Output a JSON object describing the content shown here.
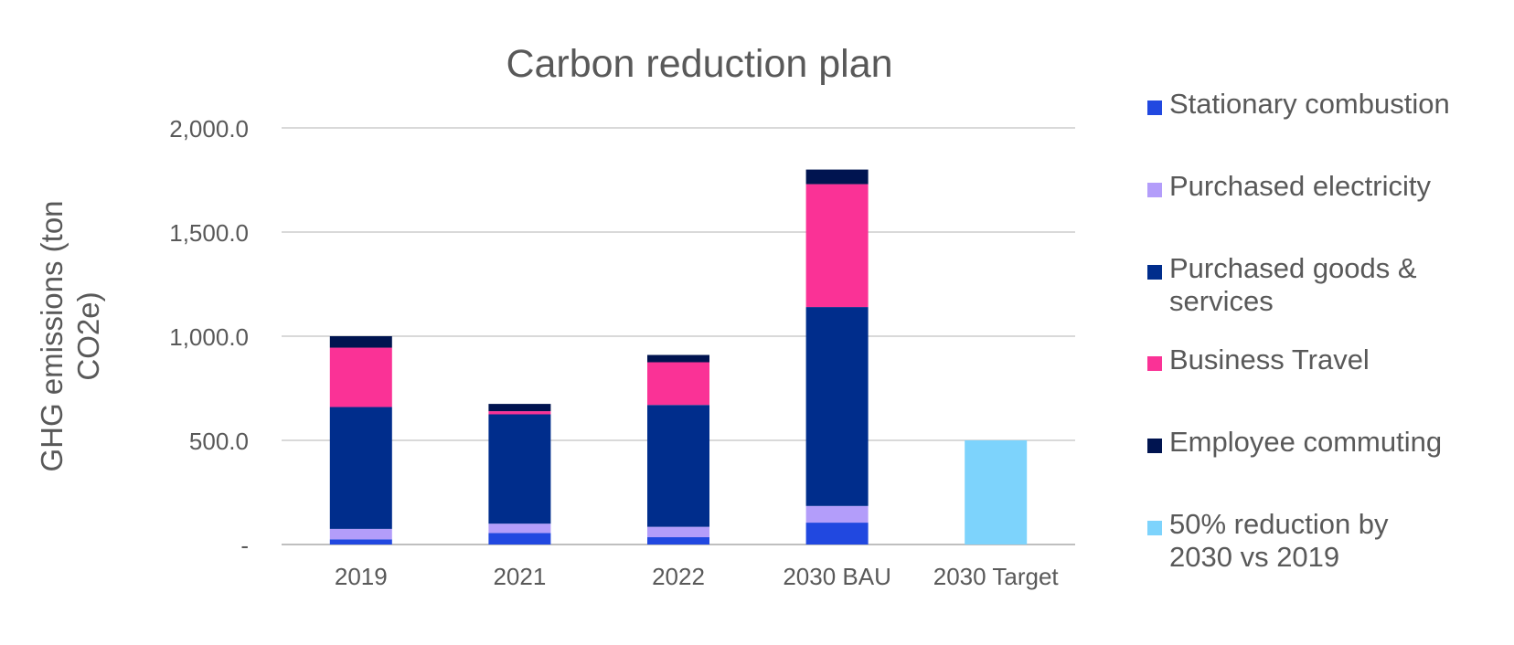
{
  "chart_data": {
    "type": "bar",
    "stacked": true,
    "title": "Carbon reduction plan",
    "ylabel": "GHG emissions (ton CO2e)",
    "xlabel": "",
    "ylim": [
      0,
      2000
    ],
    "y_ticks": [
      {
        "value": 0,
        "label": "-"
      },
      {
        "value": 500,
        "label": "500.0"
      },
      {
        "value": 1000,
        "label": "1,000.0"
      },
      {
        "value": 1500,
        "label": "1,500.0"
      },
      {
        "value": 2000,
        "label": "2,000.0"
      }
    ],
    "grid": true,
    "legend_position": "right",
    "categories": [
      "2019",
      "2021",
      "2022",
      "2030 BAU",
      "2030 Target"
    ],
    "series": [
      {
        "name": "Stationary combustion",
        "color": "#2148E0",
        "values": [
          25,
          55,
          35,
          105,
          0
        ]
      },
      {
        "name": "Purchased electricity",
        "color": "#B39DFA",
        "values": [
          50,
          45,
          50,
          80,
          0
        ]
      },
      {
        "name": "Purchased goods & services",
        "color": "#002D8C",
        "values": [
          585,
          525,
          585,
          955,
          0
        ]
      },
      {
        "name": "Business Travel",
        "color": "#FA3296",
        "values": [
          285,
          15,
          205,
          590,
          0
        ]
      },
      {
        "name": "Employee commuting",
        "color": "#001450",
        "values": [
          55,
          35,
          35,
          70,
          0
        ]
      },
      {
        "name": "50% reduction by 2030 vs 2019",
        "color": "#7DD3FC",
        "values": [
          0,
          0,
          0,
          0,
          500
        ]
      }
    ]
  }
}
